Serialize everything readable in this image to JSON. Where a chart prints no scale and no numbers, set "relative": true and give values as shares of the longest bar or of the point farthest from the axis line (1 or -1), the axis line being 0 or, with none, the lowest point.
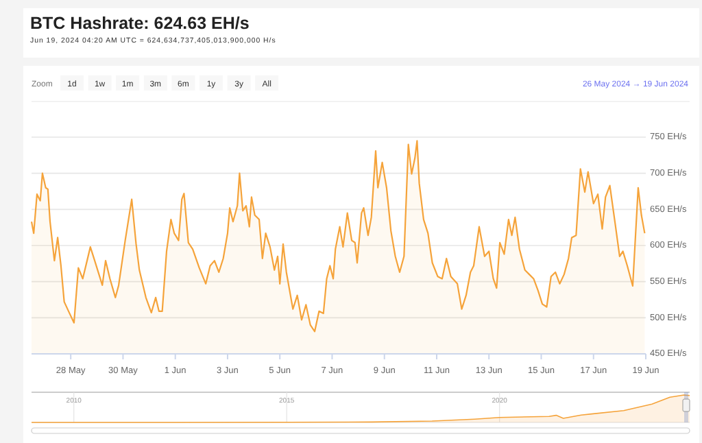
{
  "chart_data": [
    {
      "type": "area",
      "title": "BTC Hashrate: 624.63 EH/s",
      "subtitle": "Jun 19, 2024 04:20 AM UTC = 624,634,737,405,013,900,000 H/s",
      "annotations": [
        "Zoom",
        "1d",
        "1w",
        "1m",
        "3m",
        "6m",
        "1y",
        "3y",
        "All",
        "26 May 2024 → 19 Jun 2024"
      ],
      "x": [
        "2024-05-26T12:00",
        "2024-05-26T14:00",
        "2024-05-26T17:00",
        "2024-05-26T20:00",
        "2024-05-26T22:00",
        "2024-05-27T01:00",
        "2024-05-27T03:00",
        "2024-05-27T05:00",
        "2024-05-27T09:00",
        "2024-05-27T12:00",
        "2024-05-27T15:00",
        "2024-05-27T18:00",
        "2024-05-27T22:00",
        "2024-05-28T03:00",
        "2024-05-28T07:00",
        "2024-05-28T11:00",
        "2024-05-28T15:00",
        "2024-05-28T18:00",
        "2024-05-28T22:00",
        "2024-05-29T05:00",
        "2024-05-29T08:00",
        "2024-05-29T12:00",
        "2024-05-29T17:00",
        "2024-05-29T20:00",
        "2024-05-30T02:00",
        "2024-05-30T06:00",
        "2024-05-30T08:00",
        "2024-05-30T12:00",
        "2024-05-30T15:00",
        "2024-05-30T21:00",
        "2024-05-31T02:00",
        "2024-05-31T06:00",
        "2024-05-31T09:00",
        "2024-05-31T12:00",
        "2024-05-31T16:00",
        "2024-05-31T20:00",
        "2024-05-31T23:00",
        "2024-06-01T03:00",
        "2024-06-01T06:00",
        "2024-06-01T08:00",
        "2024-06-01T12:00",
        "2024-06-01T16:00",
        "2024-06-01T22:00",
        "2024-06-02T04:00",
        "2024-06-02T08:00",
        "2024-06-02T12:00",
        "2024-06-02T16:00",
        "2024-06-02T20:00",
        "2024-06-03T00:00",
        "2024-06-03T02:00",
        "2024-06-03T05:00",
        "2024-06-03T09:00",
        "2024-06-03T11:00",
        "2024-06-03T14:00",
        "2024-06-03T17:00",
        "2024-06-03T20:00",
        "2024-06-03T22:00",
        "2024-06-04T01:00",
        "2024-06-04T05:00",
        "2024-06-04T08:00",
        "2024-06-04T11:00",
        "2024-06-04T15:00",
        "2024-06-04T19:00",
        "2024-06-04T22:00",
        "2024-06-05T00:00",
        "2024-06-05T03:00",
        "2024-06-05T06:00",
        "2024-06-05T12:00",
        "2024-06-05T16:00",
        "2024-06-05T20:00",
        "2024-06-06T00:00",
        "2024-06-06T04:00",
        "2024-06-06T08:00",
        "2024-06-06T12:00",
        "2024-06-06T16:00",
        "2024-06-06T19:00",
        "2024-06-06T22:00",
        "2024-06-07T01:00",
        "2024-06-07T03:00",
        "2024-06-07T07:00",
        "2024-06-07T10:00",
        "2024-06-07T14:00",
        "2024-06-07T18:00",
        "2024-06-07T21:00",
        "2024-06-07T23:00",
        "2024-06-08T03:00",
        "2024-06-08T05:00",
        "2024-06-08T09:00",
        "2024-06-08T12:00",
        "2024-06-08T16:00",
        "2024-06-08T18:00",
        "2024-06-08T22:00",
        "2024-06-09T02:00",
        "2024-06-09T06:00",
        "2024-06-09T10:00",
        "2024-06-09T14:00",
        "2024-06-09T18:00",
        "2024-06-09T22:00",
        "2024-06-10T01:00",
        "2024-06-10T04:00",
        "2024-06-10T06:00",
        "2024-06-10T08:00",
        "2024-06-10T12:00",
        "2024-06-10T16:00",
        "2024-06-10T20:00",
        "2024-06-11T01:00",
        "2024-06-11T05:00",
        "2024-06-11T09:00",
        "2024-06-11T13:00",
        "2024-06-11T19:00",
        "2024-06-11T23:00",
        "2024-06-12T03:00",
        "2024-06-12T07:00",
        "2024-06-12T10:00",
        "2024-06-12T15:00",
        "2024-06-12T20:00",
        "2024-06-13T00:00",
        "2024-06-13T04:00",
        "2024-06-13T07:00",
        "2024-06-13T10:00",
        "2024-06-13T14:00",
        "2024-06-13T18:00",
        "2024-06-13T21:00",
        "2024-06-14T00:00",
        "2024-06-14T04:00",
        "2024-06-14T09:00",
        "2024-06-14T13:00",
        "2024-06-14T17:00",
        "2024-06-14T21:00",
        "2024-06-15T01:00",
        "2024-06-15T05:00",
        "2024-06-15T09:00",
        "2024-06-15T13:00",
        "2024-06-15T17:00",
        "2024-06-15T21:00",
        "2024-06-16T01:00",
        "2024-06-16T04:00",
        "2024-06-16T08:00",
        "2024-06-16T12:00",
        "2024-06-16T16:00",
        "2024-06-16T19:00",
        "2024-06-17T00:00",
        "2024-06-17T04:00",
        "2024-06-17T08:00",
        "2024-06-17T11:00",
        "2024-06-17T15:00",
        "2024-06-17T20:00",
        "2024-06-18T00:00",
        "2024-06-18T03:00",
        "2024-06-18T07:00",
        "2024-06-18T12:00",
        "2024-06-18T17:00",
        "2024-06-18T20:00",
        "2024-06-18T23:00"
      ],
      "series": [
        {
          "color": "#f5a33a",
          "values": [
            633,
            617,
            671,
            662,
            700,
            680,
            678,
            633,
            579,
            611,
            572,
            522,
            509,
            493,
            569,
            554,
            579,
            598,
            579,
            545,
            579,
            554,
            528,
            545,
            607,
            645,
            664,
            602,
            566,
            528,
            507,
            528,
            509,
            509,
            592,
            636,
            617,
            607,
            664,
            672,
            604,
            595,
            569,
            547,
            572,
            579,
            563,
            582,
            617,
            652,
            633,
            655,
            700,
            648,
            655,
            626,
            667,
            642,
            636,
            582,
            617,
            598,
            566,
            585,
            547,
            602,
            563,
            512,
            531,
            497,
            518,
            490,
            481,
            509,
            506,
            554,
            572,
            554,
            595,
            626,
            598,
            645,
            607,
            604,
            576,
            645,
            652,
            614,
            639,
            731,
            680,
            715,
            680,
            620,
            585,
            563,
            585,
            740,
            699,
            721,
            745,
            686,
            636,
            617,
            576,
            557,
            554,
            582,
            557,
            547,
            512,
            531,
            563,
            572,
            626,
            585,
            592,
            554,
            541,
            604,
            588,
            636,
            614,
            639,
            595,
            566,
            560,
            554,
            538,
            519,
            515,
            557,
            563,
            547,
            560,
            582,
            611,
            614,
            706,
            674,
            702,
            658,
            671,
            623,
            667,
            683,
            629,
            585,
            592,
            572,
            544,
            680,
            642,
            617
          ]
        }
      ],
      "xlim": [
        "2024-05-26T12:00",
        "2024-06-19T00:00"
      ],
      "xticks": [
        {
          "value": "2024-05-28",
          "label": "28 May"
        },
        {
          "value": "2024-05-30",
          "label": "30 May"
        },
        {
          "value": "2024-06-01",
          "label": "1 Jun"
        },
        {
          "value": "2024-06-03",
          "label": "3 Jun"
        },
        {
          "value": "2024-06-05",
          "label": "5 Jun"
        },
        {
          "value": "2024-06-07",
          "label": "7 Jun"
        },
        {
          "value": "2024-06-09",
          "label": "9 Jun"
        },
        {
          "value": "2024-06-11",
          "label": "11 Jun"
        },
        {
          "value": "2024-06-13",
          "label": "13 Jun"
        },
        {
          "value": "2024-06-15",
          "label": "15 Jun"
        },
        {
          "value": "2024-06-17",
          "label": "17 Jun"
        },
        {
          "value": "2024-06-19",
          "label": "19 Jun"
        }
      ],
      "ylim": [
        450,
        750
      ],
      "yticks": [
        {
          "value": 450,
          "label": "450 EH/s"
        },
        {
          "value": 500,
          "label": "500 EH/s"
        },
        {
          "value": 550,
          "label": "550 EH/s"
        },
        {
          "value": 600,
          "label": "600 EH/s"
        },
        {
          "value": 650,
          "label": "650 EH/s"
        },
        {
          "value": 700,
          "label": "700 EH/s"
        },
        {
          "value": 750,
          "label": "750 EH/s"
        }
      ],
      "grid": "y"
    },
    {
      "type": "area",
      "relative": true,
      "tick_labels": "x",
      "grid": "x",
      "x": [
        "2009-01-03",
        "2012-01-01",
        "2015-01-01",
        "2017-01-01",
        "2018-06-01",
        "2019-06-01",
        "2020-01-01",
        "2021-03-01",
        "2021-05-01",
        "2021-07-01",
        "2021-12-01",
        "2022-03-01",
        "2022-12-01",
        "2023-08-01",
        "2024-01-01",
        "2024-05-01",
        "2024-06-19"
      ],
      "series": [
        {
          "color": "#f5a33a",
          "values": [
            0,
            0,
            0.005,
            0.015,
            0.05,
            0.12,
            0.18,
            0.22,
            0.26,
            0.15,
            0.27,
            0.31,
            0.43,
            0.67,
            0.92,
            1,
            0.98
          ]
        }
      ],
      "xlim": [
        "2009-01-03",
        "2024-06-19"
      ],
      "xticks": [
        {
          "value": "2010-01-01",
          "label": "2010"
        },
        {
          "value": "2015-01-01",
          "label": "2015"
        },
        {
          "value": "2020-01-01",
          "label": "2020"
        }
      ]
    }
  ]
}
